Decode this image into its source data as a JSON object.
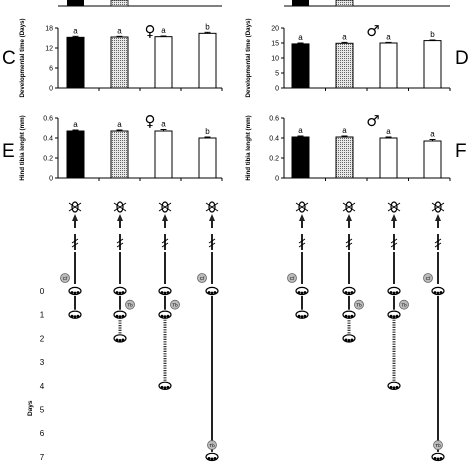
{
  "panels_top_labels": {
    "left": "C",
    "right": "D"
  },
  "panels_mid_labels": {
    "left": "E",
    "right": "F"
  },
  "chart_data": [
    {
      "id": "C",
      "type": "bar",
      "sex": "♀",
      "ylabel": "Developmental time (Days)",
      "yticks": [
        "0",
        "6",
        "12",
        "18"
      ],
      "ylim": [
        0,
        18
      ],
      "values": [
        15.2,
        15.3,
        15.4,
        16.4
      ],
      "errors": [
        0.3,
        0.2,
        0.2,
        0.3
      ],
      "letters": [
        "a",
        "a",
        "a",
        "b"
      ],
      "fills": [
        "#000000",
        "pattern",
        "#ffffff",
        "#ffffff"
      ]
    },
    {
      "id": "D",
      "type": "bar",
      "sex": "♂",
      "ylabel": "Developmental time (Days)",
      "yticks": [
        "0",
        "5",
        "10",
        "15",
        "20"
      ],
      "ylim": [
        0,
        20
      ],
      "values": [
        14.7,
        14.9,
        15.0,
        15.8
      ],
      "errors": [
        0.3,
        0.3,
        0.2,
        0.2
      ],
      "letters": [
        "a",
        "a",
        "a",
        "b"
      ],
      "fills": [
        "#000000",
        "pattern",
        "#ffffff",
        "#ffffff"
      ]
    },
    {
      "id": "E",
      "type": "bar",
      "sex": "♀",
      "ylabel": "Hind tibia lenght (mm)",
      "yticks": [
        "0",
        "0.2",
        "0.4",
        "0.6"
      ],
      "ylim": [
        0,
        0.6
      ],
      "values": [
        0.47,
        0.47,
        0.47,
        0.4
      ],
      "errors": [
        0.01,
        0.01,
        0.015,
        0.01
      ],
      "letters": [
        "a",
        "a",
        "a",
        "b"
      ],
      "fills": [
        "#000000",
        "pattern",
        "#ffffff",
        "#ffffff"
      ]
    },
    {
      "id": "F",
      "type": "bar",
      "sex": "♂",
      "ylabel": "Hind tibia lenght (mm)",
      "yticks": [
        "0",
        "0.2",
        "0.4",
        "0.6"
      ],
      "ylim": [
        0,
        0.6
      ],
      "values": [
        0.41,
        0.41,
        0.4,
        0.37
      ],
      "errors": [
        0.01,
        0.01,
        0.01,
        0.015
      ],
      "letters": [
        "a",
        "a",
        "a",
        "a"
      ],
      "fills": [
        "#000000",
        "pattern",
        "#ffffff",
        "#ffffff"
      ]
    }
  ],
  "timeline": {
    "days_title": "Days",
    "day_labels": [
      "0",
      "1",
      "2",
      "3",
      "4",
      "5",
      "6",
      "7"
    ],
    "cf_label": "Cf",
    "tb_label": "Tb",
    "treatments_tb_day": [
      null,
      1,
      1,
      6.5
    ],
    "treatments_start_day": [
      1,
      2,
      4,
      7
    ],
    "treatments_dotted": [
      false,
      true,
      true,
      false
    ]
  }
}
